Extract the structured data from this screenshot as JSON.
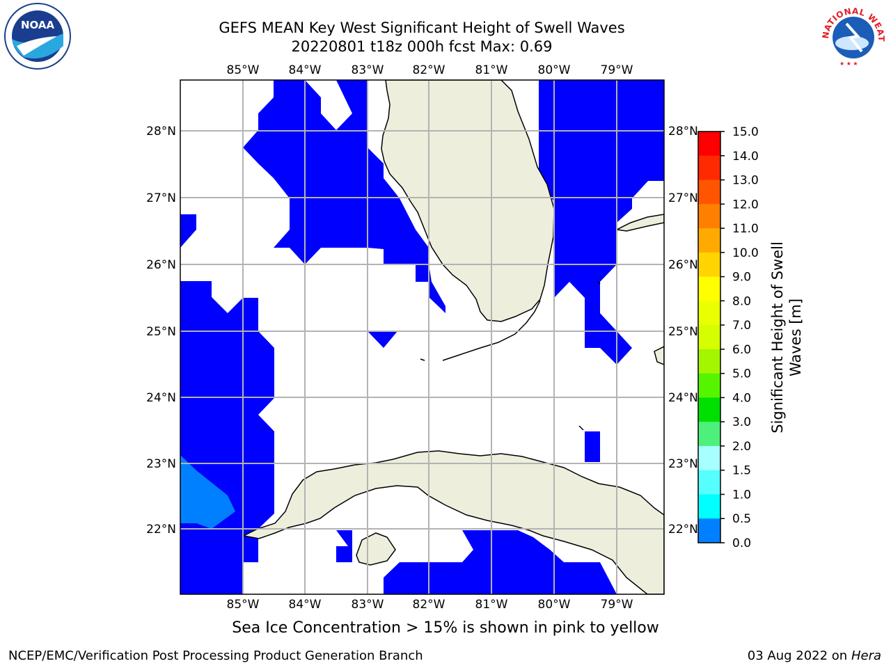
{
  "header": {
    "title_line1": "GEFS MEAN Key West Significant Height of Swell Waves",
    "title_line2": "20220801 t18z 000h fcst   Max: 0.69"
  },
  "map": {
    "lon_ticks": [
      "85°W",
      "84°W",
      "83°W",
      "82°W",
      "81°W",
      "80°W",
      "79°W"
    ],
    "lat_ticks_left": [
      "28°N",
      "27°N",
      "26°N",
      "25°N",
      "24°N",
      "23°N",
      "22°N"
    ],
    "lat_ticks_right": [
      "28°N",
      "27°N",
      "26°N",
      "25°N",
      "24°N",
      "23°N",
      "22°N"
    ],
    "colors": {
      "land": "#eeeedd",
      "band_0_0_5": "#0000ff",
      "band_0_5_1_0": "#0080ff",
      "grid": "#b3b3b3"
    }
  },
  "colorbar": {
    "label_line1": "Significant Height of Swell",
    "label_line2": "Waves [m]",
    "ticks": [
      "15.0",
      "14.0",
      "13.0",
      "12.0",
      "11.0",
      "10.0",
      "9.0",
      "8.0",
      "7.0",
      "6.0",
      "5.0",
      "4.0",
      "3.0",
      "2.0",
      "1.5",
      "1.0",
      "0.5",
      "0.0"
    ],
    "colors_top_to_bottom": [
      "#ff0000",
      "#ff2a00",
      "#ff5500",
      "#ff8000",
      "#ffaa00",
      "#ffd400",
      "#ffff00",
      "#eaff00",
      "#d5ff00",
      "#a4f500",
      "#55f500",
      "#00e000",
      "#4cf07a",
      "#a8ffff",
      "#55ffff",
      "#00ffff",
      "#0080ff",
      "#0000ff"
    ]
  },
  "notes": {
    "ice": "Sea Ice Concentration > 15% is shown in pink to yellow"
  },
  "footer": {
    "left": "NCEP/EMC/Verification Post Processing Product Generation Branch",
    "right_date": "03 Aug 2022 on",
    "right_host": "Hera"
  },
  "logos": {
    "noaa_text": "NOAA",
    "nws_ring_text": "NATIONAL WEATHER SERVICE"
  }
}
